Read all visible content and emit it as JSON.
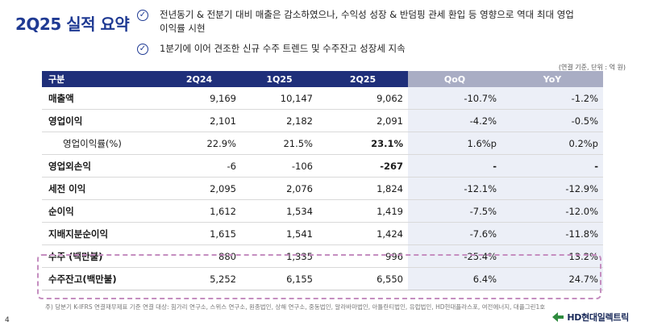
{
  "title": "2Q25 실적 요약",
  "bullets": [
    "전년동기 & 전분기 대비 매출은 감소하였으나, 수익성 성장 & 반덤핑 관세 환입 등 영향으로 역대 최대 영업이익률 시현",
    "1분기에 이어 견조한 신규 수주 트렌드 및 수주잔고 성장세 지속"
  ],
  "unit_note": "(연결 기준, 단위 : 억 원)",
  "table": {
    "headers": [
      "구분",
      "2Q24",
      "1Q25",
      "2Q25",
      "QoQ",
      "YoY"
    ],
    "rows": [
      {
        "label": "매출액",
        "q224": "9,169",
        "q125": "10,147",
        "q225": "9,062",
        "qoq": "-10.7%",
        "yoy": "-1.2%"
      },
      {
        "label": "영업이익",
        "q224": "2,101",
        "q125": "2,182",
        "q225": "2,091",
        "qoq": "-4.2%",
        "yoy": "-0.5%"
      },
      {
        "label": "영업이익률(%)",
        "q224": "22.9%",
        "q125": "21.5%",
        "q225": "23.1%",
        "qoq": "1.6%p",
        "yoy": "0.2%p"
      },
      {
        "label": "영업외손익",
        "q224": "-6",
        "q125": "-106",
        "q225": "-267",
        "qoq": "-",
        "yoy": "-"
      },
      {
        "label": "세전 이익",
        "q224": "2,095",
        "q125": "2,076",
        "q225": "1,824",
        "qoq": "-12.1%",
        "yoy": "-12.9%"
      },
      {
        "label": "순이익",
        "q224": "1,612",
        "q125": "1,534",
        "q225": "1,419",
        "qoq": "-7.5%",
        "yoy": "-12.0%"
      },
      {
        "label": "지배지분순이익",
        "q224": "1,615",
        "q125": "1,541",
        "q225": "1,424",
        "qoq": "-7.6%",
        "yoy": "-11.8%"
      },
      {
        "label": "수주 (백만불)",
        "q224": "880",
        "q125": "1,335",
        "q225": "996",
        "qoq": "-25.4%",
        "yoy": "13.2%"
      },
      {
        "label": "수주잔고(백만불)",
        "q224": "5,252",
        "q125": "6,155",
        "q225": "6,550",
        "qoq": "6.4%",
        "yoy": "24.7%"
      }
    ]
  },
  "footnote": "주) 당분기 K-IFRS 연결재무제표 기준 연결 대상: 힘가리 연구소, 스위스 연구소, 원종법인, 상해 연구소, 중동법인, 알라바마법인, 아틀란티법인, 유럽법인, HD현대플라스포, 여전에너지, 대플그린1호",
  "page_number": "4",
  "logo": {
    "text": "HD현대일렉트릭",
    "color": "#1f7a3a"
  }
}
